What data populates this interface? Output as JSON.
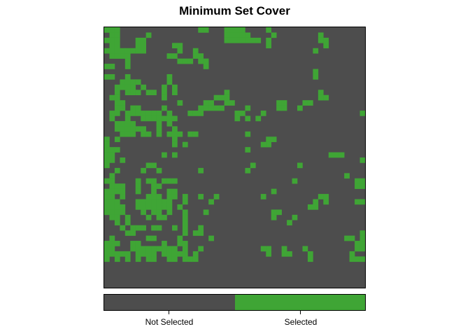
{
  "chart_data": {
    "type": "heatmap",
    "title": "Minimum Set Cover",
    "grid": {
      "rows": 50,
      "cols": 50
    },
    "categories": [
      "Not Selected",
      "Selected"
    ],
    "colors": {
      "Not Selected": "#4d4d4d",
      "Selected": "#3fa535"
    },
    "selected_cells": [
      [
        0,
        0
      ],
      [
        0,
        1
      ],
      [
        0,
        2
      ],
      [
        0,
        18
      ],
      [
        0,
        19
      ],
      [
        0,
        23
      ],
      [
        0,
        24
      ],
      [
        0,
        25
      ],
      [
        0,
        26
      ],
      [
        0,
        31
      ],
      [
        1,
        1
      ],
      [
        1,
        2
      ],
      [
        1,
        8
      ],
      [
        1,
        23
      ],
      [
        1,
        24
      ],
      [
        1,
        25
      ],
      [
        1,
        26
      ],
      [
        1,
        27
      ],
      [
        1,
        32
      ],
      [
        1,
        41
      ],
      [
        2,
        0
      ],
      [
        2,
        1
      ],
      [
        2,
        2
      ],
      [
        2,
        6
      ],
      [
        2,
        7
      ],
      [
        2,
        23
      ],
      [
        2,
        24
      ],
      [
        2,
        25
      ],
      [
        2,
        26
      ],
      [
        2,
        27
      ],
      [
        2,
        28
      ],
      [
        2,
        29
      ],
      [
        2,
        31
      ],
      [
        2,
        41
      ],
      [
        2,
        42
      ],
      [
        3,
        1
      ],
      [
        3,
        2
      ],
      [
        3,
        6
      ],
      [
        3,
        7
      ],
      [
        3,
        13
      ],
      [
        3,
        14
      ],
      [
        3,
        31
      ],
      [
        3,
        42
      ],
      [
        4,
        0
      ],
      [
        4,
        1
      ],
      [
        4,
        2
      ],
      [
        4,
        3
      ],
      [
        4,
        4
      ],
      [
        4,
        5
      ],
      [
        4,
        6
      ],
      [
        4,
        7
      ],
      [
        4,
        14
      ],
      [
        4,
        17
      ],
      [
        4,
        40
      ],
      [
        5,
        1
      ],
      [
        5,
        2
      ],
      [
        5,
        3
      ],
      [
        5,
        4
      ],
      [
        5,
        12
      ],
      [
        5,
        13
      ],
      [
        5,
        17
      ],
      [
        5,
        18
      ],
      [
        6,
        4
      ],
      [
        6,
        14
      ],
      [
        6,
        15
      ],
      [
        6,
        16
      ],
      [
        6,
        18
      ],
      [
        6,
        19
      ],
      [
        7,
        0
      ],
      [
        7,
        1
      ],
      [
        7,
        4
      ],
      [
        7,
        19
      ],
      [
        8,
        40
      ],
      [
        9,
        0
      ],
      [
        9,
        1
      ],
      [
        9,
        4
      ],
      [
        9,
        12
      ],
      [
        9,
        40
      ],
      [
        10,
        3
      ],
      [
        10,
        4
      ],
      [
        10,
        5
      ],
      [
        10,
        6
      ],
      [
        10,
        12
      ],
      [
        11,
        2
      ],
      [
        11,
        3
      ],
      [
        11,
        4
      ],
      [
        11,
        5
      ],
      [
        11,
        7
      ],
      [
        11,
        11
      ],
      [
        11,
        13
      ],
      [
        12,
        2
      ],
      [
        12,
        4
      ],
      [
        12,
        5
      ],
      [
        12,
        6
      ],
      [
        12,
        8
      ],
      [
        12,
        9
      ],
      [
        12,
        11
      ],
      [
        12,
        13
      ],
      [
        12,
        23
      ],
      [
        12,
        41
      ],
      [
        13,
        1
      ],
      [
        13,
        2
      ],
      [
        13,
        11
      ],
      [
        13,
        21
      ],
      [
        13,
        22
      ],
      [
        13,
        23
      ],
      [
        13,
        41
      ],
      [
        13,
        42
      ],
      [
        14,
        2
      ],
      [
        14,
        3
      ],
      [
        14,
        14
      ],
      [
        14,
        19
      ],
      [
        14,
        20
      ],
      [
        14,
        23
      ],
      [
        14,
        24
      ],
      [
        14,
        33
      ],
      [
        14,
        34
      ],
      [
        14,
        38
      ],
      [
        14,
        39
      ],
      [
        15,
        2
      ],
      [
        15,
        3
      ],
      [
        15,
        5
      ],
      [
        15,
        6
      ],
      [
        15,
        11
      ],
      [
        15,
        18
      ],
      [
        15,
        19
      ],
      [
        15,
        20
      ],
      [
        15,
        21
      ],
      [
        15,
        22
      ],
      [
        15,
        27
      ],
      [
        15,
        33
      ],
      [
        15,
        34
      ],
      [
        15,
        37
      ],
      [
        16,
        1
      ],
      [
        16,
        2
      ],
      [
        16,
        4
      ],
      [
        16,
        5
      ],
      [
        16,
        6
      ],
      [
        16,
        7
      ],
      [
        16,
        8
      ],
      [
        16,
        9
      ],
      [
        16,
        10
      ],
      [
        16,
        12
      ],
      [
        16,
        16
      ],
      [
        16,
        17
      ],
      [
        16,
        18
      ],
      [
        16,
        25
      ],
      [
        16,
        26
      ],
      [
        16,
        30
      ],
      [
        16,
        49
      ],
      [
        17,
        1
      ],
      [
        17,
        4
      ],
      [
        17,
        7
      ],
      [
        17,
        8
      ],
      [
        17,
        9
      ],
      [
        17,
        10
      ],
      [
        17,
        11
      ],
      [
        17,
        12
      ],
      [
        17,
        13
      ],
      [
        17,
        25
      ],
      [
        17,
        27
      ],
      [
        17,
        29
      ],
      [
        18,
        2
      ],
      [
        18,
        3
      ],
      [
        18,
        4
      ],
      [
        18,
        5
      ],
      [
        18,
        10
      ],
      [
        18,
        12
      ],
      [
        19,
        2
      ],
      [
        19,
        3
      ],
      [
        19,
        4
      ],
      [
        19,
        5
      ],
      [
        19,
        6
      ],
      [
        19,
        7
      ],
      [
        19,
        10
      ],
      [
        19,
        13
      ],
      [
        20,
        3
      ],
      [
        20,
        4
      ],
      [
        20,
        5
      ],
      [
        20,
        7
      ],
      [
        20,
        8
      ],
      [
        20,
        10
      ],
      [
        20,
        12
      ],
      [
        20,
        13
      ],
      [
        20,
        14
      ],
      [
        20,
        16
      ],
      [
        20,
        17
      ],
      [
        20,
        27
      ],
      [
        21,
        0
      ],
      [
        21,
        2
      ],
      [
        21,
        13
      ],
      [
        21,
        31
      ],
      [
        21,
        32
      ],
      [
        22,
        0
      ],
      [
        22,
        13
      ],
      [
        22,
        15
      ],
      [
        22,
        30
      ],
      [
        22,
        31
      ],
      [
        23,
        0
      ],
      [
        23,
        1
      ],
      [
        23,
        2
      ],
      [
        23,
        27
      ],
      [
        24,
        0
      ],
      [
        24,
        1
      ],
      [
        24,
        11
      ],
      [
        24,
        13
      ],
      [
        24,
        43
      ],
      [
        24,
        44
      ],
      [
        24,
        45
      ],
      [
        25,
        0
      ],
      [
        25,
        1
      ],
      [
        25,
        3
      ],
      [
        25,
        49
      ],
      [
        26,
        0
      ],
      [
        26,
        8
      ],
      [
        26,
        9
      ],
      [
        26,
        28
      ],
      [
        26,
        37
      ],
      [
        27,
        2
      ],
      [
        27,
        7
      ],
      [
        27,
        10
      ],
      [
        27,
        18
      ],
      [
        27,
        27
      ],
      [
        28,
        1
      ],
      [
        28,
        46
      ],
      [
        29,
        0
      ],
      [
        29,
        1
      ],
      [
        29,
        6
      ],
      [
        29,
        8
      ],
      [
        29,
        9
      ],
      [
        29,
        11
      ],
      [
        29,
        12
      ],
      [
        29,
        13
      ],
      [
        29,
        36
      ],
      [
        29,
        48
      ],
      [
        29,
        49
      ],
      [
        30,
        1
      ],
      [
        30,
        2
      ],
      [
        30,
        3
      ],
      [
        30,
        6
      ],
      [
        30,
        9
      ],
      [
        30,
        10
      ],
      [
        30,
        48
      ],
      [
        30,
        49
      ],
      [
        31,
        0
      ],
      [
        31,
        1
      ],
      [
        31,
        2
      ],
      [
        31,
        3
      ],
      [
        31,
        6
      ],
      [
        31,
        9
      ],
      [
        31,
        12
      ],
      [
        31,
        13
      ],
      [
        31,
        32
      ],
      [
        32,
        0
      ],
      [
        32,
        1
      ],
      [
        32,
        3
      ],
      [
        32,
        8
      ],
      [
        32,
        9
      ],
      [
        32,
        10
      ],
      [
        32,
        12
      ],
      [
        32,
        13
      ],
      [
        32,
        15
      ],
      [
        32,
        18
      ],
      [
        32,
        21
      ],
      [
        32,
        30
      ],
      [
        32,
        41
      ],
      [
        32,
        42
      ],
      [
        33,
        0
      ],
      [
        33,
        1
      ],
      [
        33,
        2
      ],
      [
        33,
        6
      ],
      [
        33,
        7
      ],
      [
        33,
        8
      ],
      [
        33,
        9
      ],
      [
        33,
        10
      ],
      [
        33,
        11
      ],
      [
        33,
        12
      ],
      [
        33,
        15
      ],
      [
        33,
        20
      ],
      [
        33,
        40
      ],
      [
        33,
        42
      ],
      [
        33,
        48
      ],
      [
        33,
        49
      ],
      [
        34,
        0
      ],
      [
        34,
        1
      ],
      [
        34,
        2
      ],
      [
        34,
        3
      ],
      [
        34,
        6
      ],
      [
        34,
        7
      ],
      [
        34,
        8
      ],
      [
        34,
        9
      ],
      [
        34,
        10
      ],
      [
        34,
        11
      ],
      [
        34,
        12
      ],
      [
        34,
        14
      ],
      [
        34,
        39
      ],
      [
        34,
        40
      ],
      [
        35,
        0
      ],
      [
        35,
        1
      ],
      [
        35,
        2
      ],
      [
        35,
        3
      ],
      [
        35,
        7
      ],
      [
        35,
        9
      ],
      [
        35,
        10
      ],
      [
        35,
        12
      ],
      [
        35,
        15
      ],
      [
        35,
        19
      ],
      [
        35,
        32
      ],
      [
        35,
        33
      ],
      [
        36,
        1
      ],
      [
        36,
        2
      ],
      [
        36,
        4
      ],
      [
        36,
        8
      ],
      [
        36,
        10
      ],
      [
        36,
        11
      ],
      [
        36,
        15
      ],
      [
        36,
        32
      ],
      [
        36,
        36
      ],
      [
        37,
        2
      ],
      [
        37,
        4
      ],
      [
        37,
        15
      ],
      [
        37,
        35
      ],
      [
        38,
        3
      ],
      [
        38,
        5
      ],
      [
        38,
        6
      ],
      [
        38,
        7
      ],
      [
        38,
        9
      ],
      [
        38,
        10
      ],
      [
        38,
        13
      ],
      [
        38,
        15
      ],
      [
        38,
        18
      ],
      [
        39,
        4
      ],
      [
        39,
        5
      ],
      [
        39,
        15
      ],
      [
        39,
        17
      ],
      [
        39,
        18
      ],
      [
        39,
        49
      ],
      [
        40,
        1
      ],
      [
        40,
        8
      ],
      [
        40,
        9
      ],
      [
        40,
        14
      ],
      [
        40,
        20
      ],
      [
        40,
        46
      ],
      [
        40,
        47
      ],
      [
        40,
        49
      ],
      [
        41,
        0
      ],
      [
        41,
        1
      ],
      [
        41,
        2
      ],
      [
        41,
        5
      ],
      [
        41,
        6
      ],
      [
        41,
        11
      ],
      [
        41,
        14
      ],
      [
        41,
        15
      ],
      [
        41,
        48
      ],
      [
        41,
        49
      ],
      [
        42,
        0
      ],
      [
        42,
        1
      ],
      [
        42,
        5
      ],
      [
        42,
        6
      ],
      [
        42,
        7
      ],
      [
        42,
        8
      ],
      [
        42,
        9
      ],
      [
        42,
        10
      ],
      [
        42,
        11
      ],
      [
        42,
        12
      ],
      [
        42,
        13
      ],
      [
        42,
        15
      ],
      [
        42,
        18
      ],
      [
        42,
        30
      ],
      [
        42,
        31
      ],
      [
        42,
        34
      ],
      [
        42,
        38
      ],
      [
        42,
        48
      ],
      [
        42,
        49
      ],
      [
        43,
        0
      ],
      [
        43,
        1
      ],
      [
        43,
        2
      ],
      [
        43,
        3
      ],
      [
        43,
        4
      ],
      [
        43,
        6
      ],
      [
        43,
        7
      ],
      [
        43,
        8
      ],
      [
        43,
        9
      ],
      [
        43,
        11
      ],
      [
        43,
        12
      ],
      [
        43,
        13
      ],
      [
        43,
        14
      ],
      [
        43,
        15
      ],
      [
        43,
        17
      ],
      [
        43,
        31
      ],
      [
        43,
        34
      ],
      [
        43,
        35
      ],
      [
        43,
        39
      ],
      [
        43,
        47
      ],
      [
        44,
        0
      ],
      [
        44,
        2
      ],
      [
        44,
        4
      ],
      [
        44,
        6
      ],
      [
        44,
        8
      ],
      [
        44,
        9
      ],
      [
        44,
        12
      ],
      [
        44,
        13
      ],
      [
        44,
        15
      ],
      [
        44,
        16
      ],
      [
        44,
        17
      ],
      [
        44,
        39
      ],
      [
        44,
        47
      ],
      [
        44,
        48
      ],
      [
        44,
        49
      ]
    ]
  }
}
